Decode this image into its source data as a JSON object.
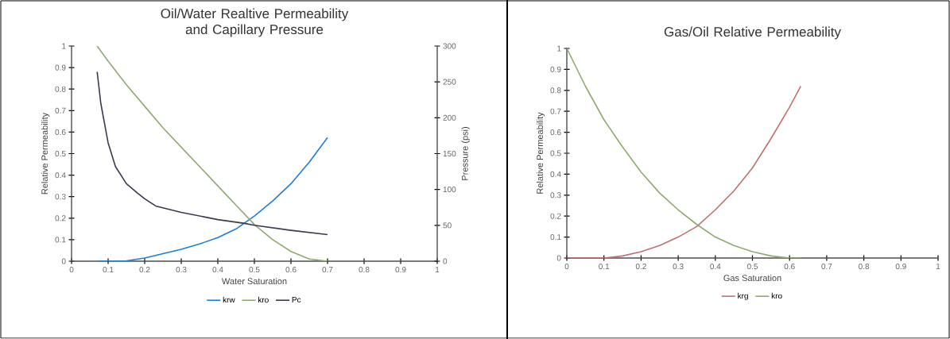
{
  "chart_data": [
    {
      "type": "line",
      "title": "Oil/Water Realtive Permeability and Capillary Pressure",
      "xlabel": "Water Saturation",
      "ylabel": "Relative Permeability",
      "y2label": "Pressure (psi)",
      "xlim": [
        0,
        1
      ],
      "xticks": [
        0,
        0.1,
        0.2,
        0.3,
        0.4,
        0.5,
        0.6,
        0.7,
        0.8,
        0.9,
        1
      ],
      "ylim": [
        0,
        1
      ],
      "yticks": [
        0,
        0.1,
        0.2,
        0.3,
        0.4,
        0.5,
        0.6,
        0.7,
        0.8,
        0.9,
        1
      ],
      "y2lim": [
        0,
        300
      ],
      "y2ticks": [
        0,
        50,
        100,
        150,
        200,
        250,
        300
      ],
      "grid": false,
      "legend": "bottom",
      "series": [
        {
          "name": "krw",
          "color": "#1f7fd6",
          "x": [
            0.07,
            0.1,
            0.15,
            0.2,
            0.25,
            0.3,
            0.35,
            0.4,
            0.45,
            0.5,
            0.55,
            0.6,
            0.65,
            0.7
          ],
          "values": [
            0,
            0,
            0.002,
            0.015,
            0.035,
            0.055,
            0.08,
            0.11,
            0.15,
            0.21,
            0.28,
            0.36,
            0.46,
            0.575
          ]
        },
        {
          "name": "kro",
          "color": "#8faa6e",
          "x": [
            0.07,
            0.1,
            0.15,
            0.2,
            0.25,
            0.3,
            0.35,
            0.4,
            0.45,
            0.5,
            0.55,
            0.6,
            0.65,
            0.7
          ],
          "values": [
            1.0,
            0.93,
            0.82,
            0.72,
            0.62,
            0.53,
            0.44,
            0.35,
            0.26,
            0.17,
            0.1,
            0.045,
            0.01,
            0
          ]
        },
        {
          "name": "Pc",
          "color": "#3a3a4f",
          "axis": "y2",
          "x": [
            0.07,
            0.08,
            0.1,
            0.12,
            0.15,
            0.18,
            0.2,
            0.23,
            0.3,
            0.4,
            0.47,
            0.5,
            0.6,
            0.7
          ],
          "values": [
            264,
            220,
            165,
            132,
            108,
            95,
            87,
            77,
            68,
            58,
            53,
            50,
            43,
            37
          ]
        }
      ]
    },
    {
      "type": "line",
      "title": "Gas/Oil Relative Permeability",
      "xlabel": "Gas Saturation",
      "ylabel": "Relative Permeability",
      "xlim": [
        0,
        1
      ],
      "xticks": [
        0,
        0.1,
        0.2,
        0.3,
        0.4,
        0.5,
        0.6,
        0.7,
        0.8,
        0.9,
        1
      ],
      "ylim": [
        0,
        1
      ],
      "yticks": [
        0,
        0.1,
        0.2,
        0.3,
        0.4,
        0.5,
        0.6,
        0.7,
        0.8,
        0.9,
        1
      ],
      "grid": false,
      "legend": "bottom",
      "series": [
        {
          "name": "krg",
          "color": "#c07070",
          "x": [
            0,
            0.1,
            0.15,
            0.2,
            0.25,
            0.3,
            0.35,
            0.4,
            0.45,
            0.5,
            0.55,
            0.6,
            0.63
          ],
          "values": [
            0,
            0,
            0.01,
            0.03,
            0.06,
            0.1,
            0.15,
            0.23,
            0.32,
            0.43,
            0.57,
            0.72,
            0.82
          ]
        },
        {
          "name": "kro",
          "color": "#8faa6e",
          "x": [
            0,
            0.05,
            0.1,
            0.15,
            0.2,
            0.25,
            0.3,
            0.35,
            0.4,
            0.45,
            0.5,
            0.55,
            0.6,
            0.63
          ],
          "values": [
            1,
            0.82,
            0.66,
            0.53,
            0.41,
            0.31,
            0.23,
            0.16,
            0.1,
            0.06,
            0.03,
            0.01,
            0,
            0
          ]
        }
      ]
    }
  ]
}
